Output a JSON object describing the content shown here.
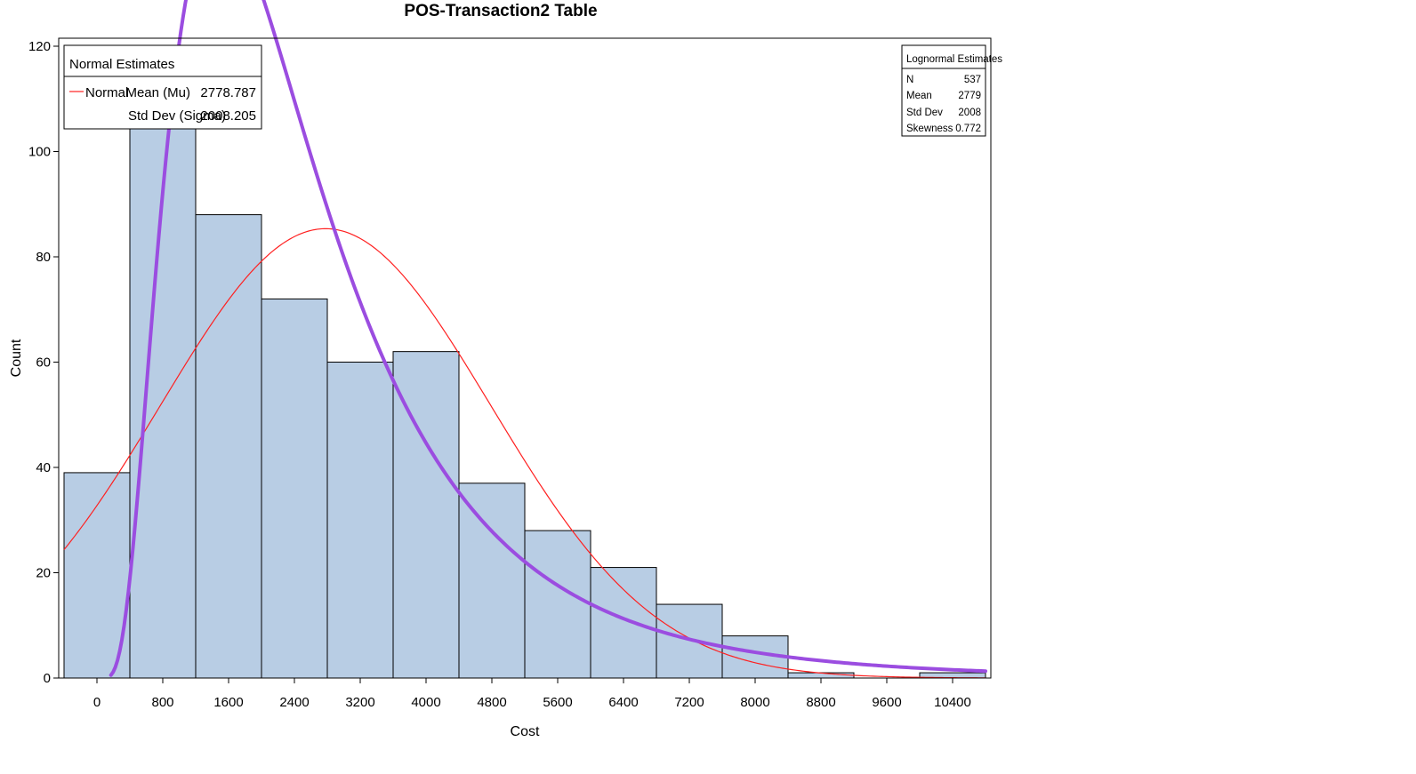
{
  "chart_data": {
    "type": "bar",
    "title": "POS-Transaction2 Table",
    "xlabel": "Cost",
    "ylabel": "Count",
    "xlim": [
      -400,
      10800
    ],
    "ylim": [
      0,
      120
    ],
    "x_ticks": [
      0,
      800,
      1600,
      2400,
      3200,
      4000,
      4800,
      5600,
      6400,
      7200,
      8000,
      8800,
      9600,
      10400
    ],
    "x_tick_labels": [
      "0",
      "800",
      "1600",
      "2400",
      "3200",
      "4000",
      "4800",
      "5600",
      "6400",
      "7200",
      "8000",
      "8800",
      "9600",
      "10400"
    ],
    "y_ticks": [
      0,
      20,
      40,
      60,
      80,
      100,
      120
    ],
    "y_tick_labels": [
      "0",
      "20",
      "40",
      "60",
      "80",
      "100",
      "120"
    ],
    "bin_width": 800,
    "bins_start": [
      -400,
      400,
      1200,
      2000,
      2800,
      3600,
      4400,
      5200,
      6000,
      6800,
      7600,
      8400,
      9200,
      10000
    ],
    "counts": [
      39,
      106,
      88,
      72,
      60,
      62,
      37,
      28,
      21,
      14,
      8,
      1,
      0,
      1
    ],
    "bar_color": "#b8cde4",
    "curves": [
      {
        "name": "Normal",
        "color": "#ff2020",
        "mean": 2778.787,
        "sd": 2008.205
      },
      {
        "color": "#9b4de0",
        "n": 537,
        "mean": 2779,
        "sd": 2008
      }
    ]
  },
  "normal_legend": {
    "title": "Normal Estimates",
    "series_label": "Normal",
    "rows": [
      {
        "label": "Mean (Mu)",
        "value": "2778.787"
      },
      {
        "label": "Std Dev (Sigma)",
        "value": "2008.205"
      }
    ]
  },
  "lognormal_legend": {
    "title": "Lognormal Estimates",
    "rows": [
      {
        "label": "N",
        "value": "537"
      },
      {
        "label": "Mean",
        "value": "2779"
      },
      {
        "label": "Std Dev",
        "value": "2008"
      },
      {
        "label": "Skewness",
        "value": "0.772"
      }
    ]
  }
}
